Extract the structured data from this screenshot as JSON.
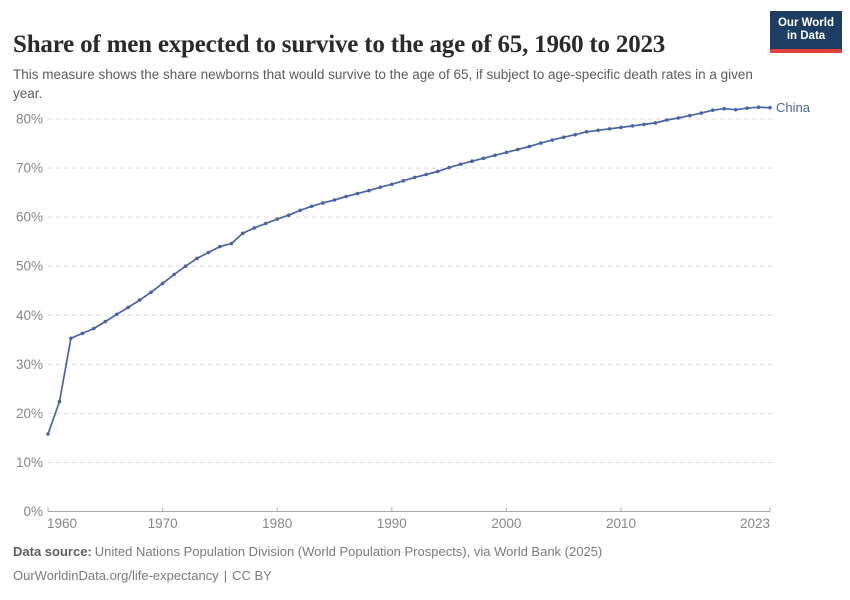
{
  "header": {
    "title": "Share of men expected to survive to the age of 65, 1960 to 2023",
    "subtitle": "This measure shows the share newborns that would survive to the age of 65, if subject to age-specific death rates in a given year.",
    "logo": {
      "line1": "Our World",
      "line2": "in Data"
    }
  },
  "footer": {
    "source_label": "Data source:",
    "source_text": "United Nations Population Division (World Population Prospects), via World Bank (2025)",
    "url": "OurWorldinData.org/life-expectancy",
    "separator": "|",
    "license": "CC BY"
  },
  "colors": {
    "line": "#4665a8",
    "grid": "#d9d9d9",
    "axis": "#a8a8a8",
    "tick_label": "#878787",
    "logo_bg": "#1d3d63",
    "logo_stripe": "#e0403c"
  },
  "chart_data": {
    "type": "line",
    "title": "Share of men expected to survive to the age of 65, 1960 to 2023",
    "xlabel": "",
    "ylabel": "",
    "grid": "dashed-horizontal",
    "legend": "end-of-line-label",
    "ylim": [
      0,
      85
    ],
    "xlim": [
      1960,
      2023
    ],
    "y_ticks": [
      0,
      10,
      20,
      30,
      40,
      50,
      60,
      70,
      80
    ],
    "y_tick_suffix": "%",
    "x_ticks": [
      1960,
      1970,
      1980,
      1990,
      2000,
      2010,
      2023
    ],
    "x": [
      1960,
      1961,
      1962,
      1963,
      1964,
      1965,
      1966,
      1967,
      1968,
      1969,
      1970,
      1971,
      1972,
      1973,
      1974,
      1975,
      1976,
      1977,
      1978,
      1979,
      1980,
      1981,
      1982,
      1983,
      1984,
      1985,
      1986,
      1987,
      1988,
      1989,
      1990,
      1991,
      1992,
      1993,
      1994,
      1995,
      1996,
      1997,
      1998,
      1999,
      2000,
      2001,
      2002,
      2003,
      2004,
      2005,
      2006,
      2007,
      2008,
      2009,
      2010,
      2011,
      2012,
      2013,
      2014,
      2015,
      2016,
      2017,
      2018,
      2019,
      2020,
      2021,
      2022,
      2023
    ],
    "series": [
      {
        "name": "China",
        "color": "#4665a8",
        "values": [
          15.8,
          22.4,
          35.3,
          36.3,
          37.3,
          38.7,
          40.2,
          41.6,
          43.1,
          44.7,
          46.5,
          48.3,
          50.0,
          51.6,
          52.8,
          54.0,
          54.6,
          56.7,
          57.8,
          58.7,
          59.6,
          60.4,
          61.4,
          62.2,
          62.9,
          63.5,
          64.2,
          64.8,
          65.4,
          66.1,
          66.7,
          67.4,
          68.1,
          68.7,
          69.3,
          70.1,
          70.8,
          71.4,
          72.0,
          72.6,
          73.2,
          73.8,
          74.4,
          75.1,
          75.7,
          76.3,
          76.8,
          77.4,
          77.7,
          78.0,
          78.3,
          78.6,
          78.9,
          79.2,
          79.8,
          80.2,
          80.7,
          81.2,
          81.8,
          82.1,
          81.9,
          82.2,
          82.4,
          82.3
        ]
      }
    ]
  }
}
